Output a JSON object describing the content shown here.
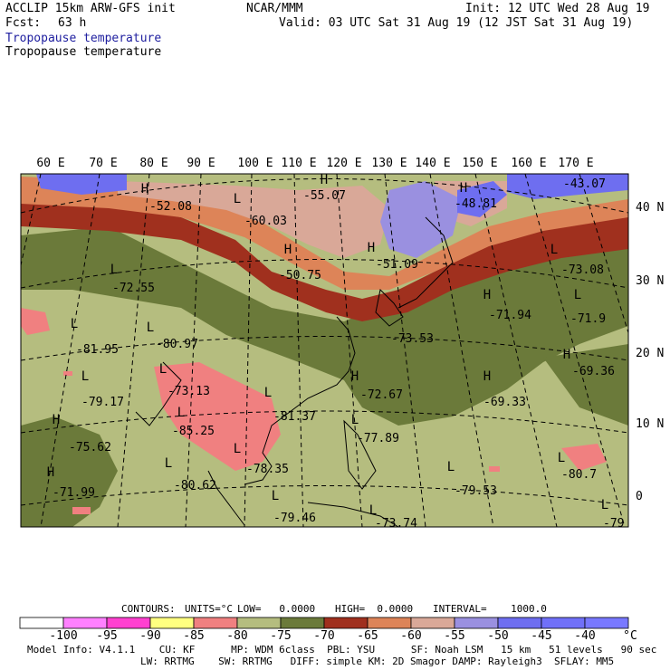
{
  "header": {
    "model": "ACCLIP 15km ARW-GFS init",
    "org": "NCAR/MMM",
    "init": "Init: 12 UTC Wed 28 Aug 19",
    "fcst_label": "Fcst:",
    "fcst_value": "63 h",
    "valid": "Valid: 03 UTC Sat 31 Aug 19 (12 JST Sat 31 Aug 19)",
    "field_title_1": "Tropopause temperature",
    "field_title_2": "Tropopause temperature"
  },
  "map": {
    "lon_labels": [
      "60 E",
      "70 E",
      "80 E",
      "90 E",
      "100 E",
      "110 E",
      "120 E",
      "130 E",
      "140 E",
      "150 E",
      "160 E",
      "170 E"
    ],
    "lat_labels": [
      "40 N",
      "30 N",
      "20 N",
      "10 N",
      "0"
    ],
    "colors": {
      "dark_green": "#6b7a3a",
      "khaki": "#b5bd7f",
      "pink": "#f08080",
      "dark_red": "#a0301e",
      "orange": "#dd8458",
      "rose": "#d9a898",
      "lavender": "#9a90e0",
      "blue": "#6e6ef0",
      "magenta": "#ff40d0"
    },
    "points": [
      {
        "type": "H",
        "value": "-52.08"
      },
      {
        "type": "L",
        "value": "-60.03"
      },
      {
        "type": "H",
        "value": "-55.07"
      },
      {
        "type": "H",
        "value": "-48.81"
      },
      {
        "type": "",
        "value": "-43.07"
      },
      {
        "type": "L",
        "value": "-73.08"
      },
      {
        "type": "H",
        "value": "-50.75"
      },
      {
        "type": "H",
        "value": "-51.09"
      },
      {
        "type": "L",
        "value": "-72.55"
      },
      {
        "type": "H",
        "value": "-71.94"
      },
      {
        "type": "L",
        "value": "-71.9"
      },
      {
        "type": "L",
        "value": "-81.95"
      },
      {
        "type": "L",
        "value": "-80.97"
      },
      {
        "type": "",
        "value": "-73.53"
      },
      {
        "type": "H",
        "value": "-69.36"
      },
      {
        "type": "L",
        "value": "-79.17"
      },
      {
        "type": "L",
        "value": "-73.13"
      },
      {
        "type": "H",
        "value": "-72.67"
      },
      {
        "type": "H",
        "value": "-69.33"
      },
      {
        "type": "L",
        "value": "-85.25"
      },
      {
        "type": "L",
        "value": "-81.37"
      },
      {
        "type": "H",
        "value": "-75.62"
      },
      {
        "type": "L",
        "value": "-77.89"
      },
      {
        "type": "L",
        "value": "-78.35"
      },
      {
        "type": "L",
        "value": "-80.7"
      },
      {
        "type": "H",
        "value": "-71.99"
      },
      {
        "type": "L",
        "value": "-80.62"
      },
      {
        "type": "L",
        "value": "-79.53"
      },
      {
        "type": "L",
        "value": "-79.46"
      },
      {
        "type": "L",
        "value": "-73.74"
      },
      {
        "type": "L",
        "value": "-79"
      }
    ]
  },
  "contours_line": {
    "contours_label": "CONTOURS:",
    "units": "UNITS=°C",
    "low": "LOW=   0.0000",
    "high": "HIGH=  0.0000",
    "interval": "INTERVAL=    1000.0"
  },
  "colorbar": {
    "ticks": [
      "-100",
      "-95",
      "-90",
      "-85",
      "-80",
      "-75",
      "-70",
      "-65",
      "-60",
      "-55",
      "-50",
      "-45",
      "-40"
    ],
    "unit": "°C",
    "colors": [
      "#ffffff",
      "#ff80ff",
      "#ff40d0",
      "#ffff80",
      "#f08080",
      "#b5bd7f",
      "#6b7a3a",
      "#a0301e",
      "#dd8458",
      "#d9a898",
      "#9a90e0",
      "#6e6ef0",
      "#7070f8",
      "#7878ff"
    ]
  },
  "footer": {
    "line1": "Model Info: V4.1.1    CU: KF      MP: WDM 6class  PBL: YSU      SF: Noah LSM   15 km   51 levels   90 sec",
    "line2": "LW: RRTMG    SW: RRTMG   DIFF: simple KM: 2D Smagor DAMP: Rayleigh3  SFLAY: MM5"
  }
}
